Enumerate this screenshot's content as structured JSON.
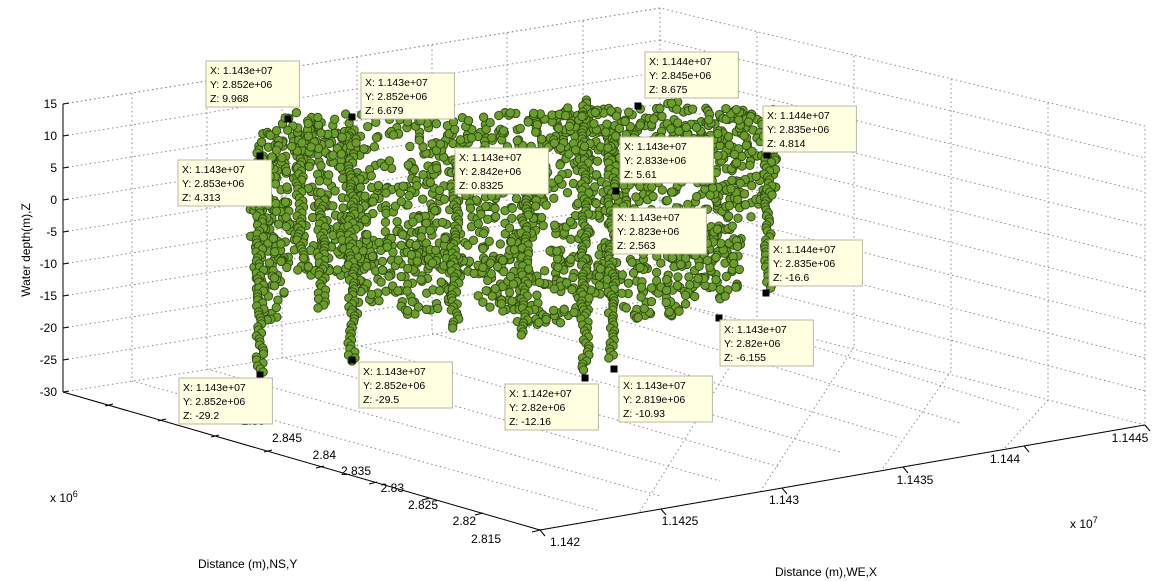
{
  "chart_data": {
    "type": "scatter",
    "subtype": "3d-scatter",
    "title": "",
    "xlabel": "Distance (m),WE,X",
    "ylabel": "Distance (m),NS,Y",
    "zlabel": "Water depth(m),Z",
    "x_multiplier": "x 10",
    "x_exponent": "7",
    "y_multiplier": "x 10",
    "y_exponent": "6",
    "x_ticks": [
      "1.142",
      "1.1425",
      "1.143",
      "1.1435",
      "1.144",
      "1.1445"
    ],
    "y_ticks": [
      "2.815",
      "2.82",
      "2.825",
      "2.83",
      "2.835",
      "2.84",
      "2.845",
      "2.85",
      "2.855"
    ],
    "z_ticks": [
      "-30",
      "-25",
      "-20",
      "-15",
      "-10",
      "-5",
      "0",
      "5",
      "10",
      "15"
    ],
    "xlim": [
      11420000,
      11445000
    ],
    "ylim": [
      2815000,
      2855000
    ],
    "zlim": [
      -30,
      15
    ],
    "grid": true,
    "marker_color": "#6b9e2a",
    "marker_edge_color": "#2e4a12",
    "datatips": [
      {
        "x": "1.143e+07",
        "y": "2.852e+06",
        "z": "9.968"
      },
      {
        "x": "1.143e+07",
        "y": "2.852e+06",
        "z": "6.679"
      },
      {
        "x": "1.144e+07",
        "y": "2.845e+06",
        "z": "8.675"
      },
      {
        "x": "1.144e+07",
        "y": "2.835e+06",
        "z": "4.814"
      },
      {
        "x": "1.143e+07",
        "y": "2.853e+06",
        "z": "4.313"
      },
      {
        "x": "1.143e+07",
        "y": "2.842e+06",
        "z": "0.8325"
      },
      {
        "x": "1.143e+07",
        "y": "2.833e+06",
        "z": "5.61"
      },
      {
        "x": "1.143e+07",
        "y": "2.823e+06",
        "z": "2.563"
      },
      {
        "x": "1.144e+07",
        "y": "2.835e+06",
        "z": "-16.6"
      },
      {
        "x": "1.143e+07",
        "y": "2.82e+06",
        "z": "-6.155"
      },
      {
        "x": "1.143e+07",
        "y": "2.852e+06",
        "z": "-29.2"
      },
      {
        "x": "1.143e+07",
        "y": "2.852e+06",
        "z": "-29.5"
      },
      {
        "x": "1.142e+07",
        "y": "2.82e+06",
        "z": "-12.16"
      },
      {
        "x": "1.143e+07",
        "y": "2.819e+06",
        "z": "-10.93"
      }
    ]
  }
}
